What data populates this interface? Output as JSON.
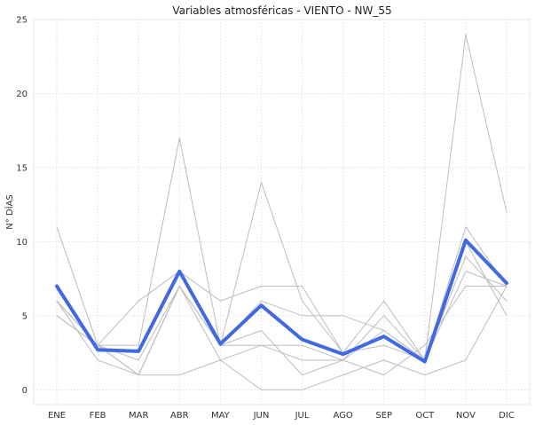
{
  "chart_data": {
    "type": "line",
    "title": "Variables atmosféricas - VIENTO - NW_55",
    "xlabel": "",
    "ylabel": "N° DÍAS",
    "categories": [
      "ENE",
      "FEB",
      "MAR",
      "ABR",
      "MAY",
      "JUN",
      "JUL",
      "AGO",
      "SEP",
      "OCT",
      "NOV",
      "DIC"
    ],
    "ylim": [
      -1,
      25
    ],
    "yticks": [
      0,
      5,
      10,
      15,
      20,
      25
    ],
    "grid": true,
    "series": [
      {
        "values": [
          11,
          3,
          3,
          17,
          3,
          14,
          6,
          2.5,
          3,
          2,
          24,
          12
        ],
        "color": "#bdbdbd",
        "role": "background"
      },
      {
        "values": [
          6,
          3,
          6,
          8,
          6,
          7,
          7,
          2.5,
          6,
          2,
          11,
          7
        ],
        "color": "#bdbdbd",
        "role": "background"
      },
      {
        "values": [
          5,
          3,
          1,
          7,
          3,
          4,
          1,
          2,
          4,
          2,
          9,
          6
        ],
        "color": "#bdbdbd",
        "role": "background"
      },
      {
        "values": [
          6,
          2,
          1,
          1,
          2,
          0,
          0,
          1,
          2,
          1,
          2,
          7
        ],
        "color": "#bdbdbd",
        "role": "background"
      },
      {
        "values": [
          6,
          3,
          2,
          7,
          3,
          6,
          5,
          5,
          4,
          2,
          8,
          7
        ],
        "color": "#bdbdbd",
        "role": "background"
      },
      {
        "values": [
          6,
          3,
          1,
          7,
          3,
          3,
          3,
          2,
          5,
          2,
          10,
          5
        ],
        "color": "#bdbdbd",
        "role": "background"
      },
      {
        "values": [
          5,
          3,
          1,
          7,
          2,
          3,
          2,
          2,
          1,
          3,
          7,
          7
        ],
        "color": "#bdbdbd",
        "role": "background"
      },
      {
        "values": [
          7,
          2.7,
          2.6,
          8,
          3.1,
          5.7,
          3.4,
          2.4,
          3.6,
          1.9,
          10.1,
          7.2
        ],
        "color": "#4169e1",
        "role": "highlight"
      }
    ]
  }
}
